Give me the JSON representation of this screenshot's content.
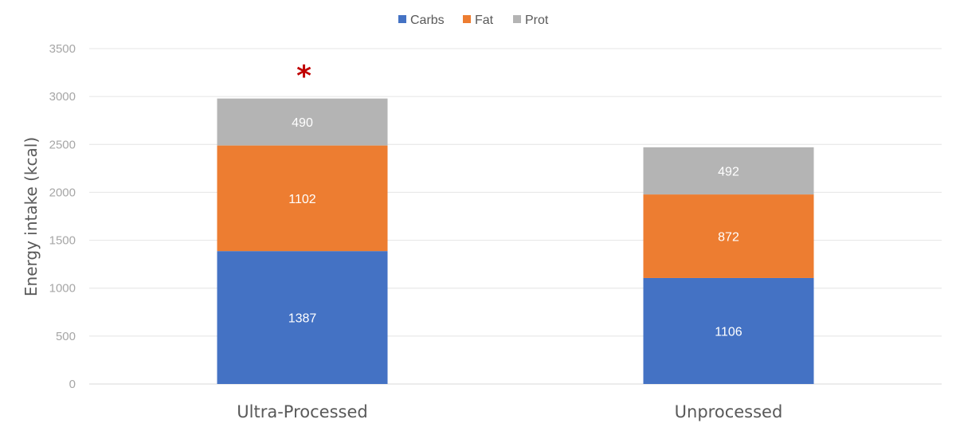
{
  "chart_data": {
    "type": "bar",
    "stacked": true,
    "categories": [
      "Ultra-Processed",
      "Unprocessed"
    ],
    "series": [
      {
        "name": "Carbs",
        "color": "#4472c4",
        "values": [
          1387,
          1106
        ]
      },
      {
        "name": "Fat",
        "color": "#ed7d31",
        "values": [
          1102,
          872
        ]
      },
      {
        "name": "Prot",
        "color": "#b4b4b4",
        "values": [
          490,
          492
        ]
      }
    ],
    "ylabel": "Energy intake (kcal)",
    "xlabel": "",
    "ylim": [
      0,
      3500
    ],
    "yticks": [
      0,
      500,
      1000,
      1500,
      2000,
      2500,
      3000,
      3500
    ],
    "grid": true,
    "legend_position": "top",
    "annotation": {
      "text": "*",
      "category": "Ultra-Processed",
      "color": "#c00000"
    }
  }
}
